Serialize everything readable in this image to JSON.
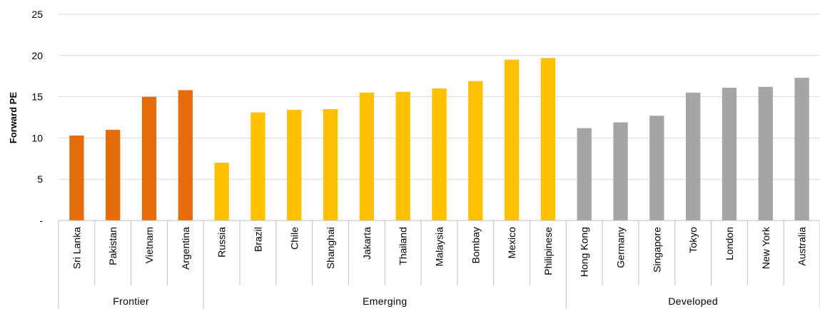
{
  "chart_data": {
    "type": "bar",
    "title": "",
    "xlabel": "",
    "ylabel": "Forward PE",
    "ylim": [
      0,
      25
    ],
    "yticks": [
      {
        "value": 0,
        "label": "-"
      },
      {
        "value": 5,
        "label": "5"
      },
      {
        "value": 10,
        "label": "10"
      },
      {
        "value": 15,
        "label": "15"
      },
      {
        "value": 20,
        "label": "20"
      },
      {
        "value": 25,
        "label": "25"
      }
    ],
    "grid": true,
    "legend": "none",
    "groups": [
      {
        "name": "Frontier",
        "color": "#E46C0A",
        "categories": [
          "Sri Lanka",
          "Pakistan",
          "Vietnam",
          "Argentina"
        ],
        "values": [
          10.3,
          11.0,
          15.0,
          15.8
        ]
      },
      {
        "name": "Emerging",
        "color": "#FFC000",
        "categories": [
          "Russia",
          "Brazil",
          "Chile",
          "Shanghai",
          "Jakarta",
          "Thailand",
          "Malaysia",
          "Bombay",
          "Mexico",
          "Philipinese"
        ],
        "values": [
          7.0,
          13.1,
          13.4,
          13.5,
          15.5,
          15.6,
          16.0,
          16.9,
          19.5,
          19.7
        ]
      },
      {
        "name": "Developed",
        "color": "#A5A5A5",
        "categories": [
          "Hong Kong",
          "Germany",
          "Singapore",
          "Tokyo",
          "London",
          "New York",
          "Australia"
        ],
        "values": [
          11.2,
          11.9,
          12.7,
          15.5,
          16.1,
          16.2,
          17.3
        ]
      }
    ]
  }
}
